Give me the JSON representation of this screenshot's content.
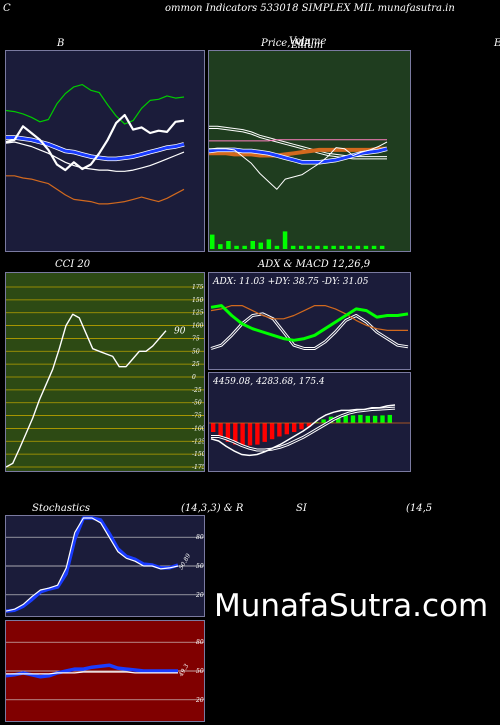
{
  "header": {
    "title": "ommon  Indicators 533018  SIMPLEX  MIL  munafasutra.in",
    "left_mark": "C"
  },
  "titles": {
    "bb": "B",
    "price": "Price,  MA",
    "price_overlay_a": "Volume",
    "price_overlay_b": "Lillum",
    "right_edge": "E",
    "cci": "CCI 20",
    "adx": "ADX  & MACD 12,26,9",
    "stoch": "Stochastics",
    "stoch_params": "(14,3,3) & R",
    "rsi": "SI",
    "rsi_params": "(14,5"
  },
  "watermark": "MunafaSutra.com",
  "colors": {
    "navy": "#1b1c3a",
    "green_bg": "#1f3d1f",
    "olive": "#2d4a14",
    "dark_red": "#800000",
    "blue": "#1a3cff",
    "white": "#ffffff",
    "orange": "#d2691e",
    "green": "#00cc00",
    "lime": "#00ff00",
    "red": "#ff0000",
    "pink": "#ff80c0"
  },
  "chart_data": [
    {
      "type": "line",
      "panel": "bollinger",
      "series": [
        {
          "name": "",
          "color": "#00cc00",
          "values": [
            116,
            115,
            113,
            110,
            106,
            108,
            122,
            131,
            137,
            139,
            134,
            132,
            121,
            111,
            104,
            107,
            118,
            125,
            126,
            129,
            127,
            128
          ]
        },
        {
          "name": "",
          "color": "#1a3cff",
          "values": [
            92,
            92,
            91,
            90,
            88,
            86,
            83,
            80,
            79,
            77,
            75,
            74,
            73,
            73,
            74,
            75,
            77,
            79,
            81,
            83,
            84,
            86
          ]
        },
        {
          "name": "",
          "color": "#ffffff",
          "values": [
            87,
            88,
            86,
            84,
            81,
            78,
            74,
            70,
            67,
            65,
            64,
            63,
            63,
            62,
            62,
            63,
            65,
            67,
            70,
            73,
            76,
            79
          ]
        },
        {
          "name": "",
          "color": "#d2691e",
          "values": [
            58,
            58,
            56,
            55,
            53,
            51,
            46,
            41,
            37,
            36,
            35,
            33,
            33,
            34,
            35,
            37,
            39,
            37,
            35,
            38,
            42,
            46
          ]
        },
        {
          "name": "",
          "color": "#ffffff",
          "values": [
            88,
            90,
            102,
            96,
            90,
            81,
            68,
            63,
            70,
            64,
            68,
            78,
            90,
            105,
            112,
            99,
            101,
            96,
            98,
            97,
            106,
            107
          ]
        }
      ]
    },
    {
      "type": "line",
      "panel": "price_ma",
      "series": [
        {
          "name": "",
          "color": "#ffffff",
          "values": [
            102,
            102,
            101,
            100,
            99,
            97,
            94,
            92,
            90,
            88,
            86,
            84,
            82,
            80,
            78,
            77,
            76,
            75,
            75,
            75,
            75,
            75
          ]
        },
        {
          "name": "",
          "color": "#ff80c0",
          "values": [
            89,
            89,
            89,
            89,
            89,
            89,
            89,
            89,
            90,
            90,
            90,
            90,
            90,
            90,
            90,
            90,
            90,
            90,
            90,
            90,
            90,
            90
          ]
        },
        {
          "name": "",
          "color": "#d2691e",
          "values": [
            78,
            78,
            78,
            77,
            77,
            77,
            76,
            76,
            76,
            77,
            78,
            79,
            80,
            81,
            81,
            81,
            81,
            81,
            81,
            81,
            82,
            82
          ]
        },
        {
          "name": "",
          "color": "#1a3cff",
          "values": [
            80,
            81,
            81,
            81,
            80,
            80,
            79,
            78,
            76,
            74,
            72,
            70,
            70,
            70,
            71,
            72,
            74,
            76,
            78,
            79,
            80,
            82
          ]
        },
        {
          "name": "",
          "color": "#ffffff",
          "values": [
            82,
            82,
            82,
            81,
            75,
            69,
            60,
            53,
            46,
            55,
            57,
            59,
            64,
            69,
            75,
            83,
            82,
            76,
            79,
            81,
            84,
            88
          ]
        }
      ],
      "volume": [
        9,
        3,
        5,
        2,
        2,
        5,
        4,
        6,
        2,
        11,
        2,
        2,
        2,
        2,
        2,
        2,
        2,
        2,
        2,
        2,
        2,
        2
      ]
    },
    {
      "type": "line",
      "panel": "cci",
      "ylim": [
        -175,
        175
      ],
      "ticks": [
        175,
        150,
        125,
        100,
        75,
        50,
        25,
        0,
        -25,
        -50,
        -75,
        -100,
        -125,
        -150,
        -175
      ],
      "series": [
        {
          "name": "",
          "color": "#ffffff",
          "values": [
            -175,
            -168,
            -140,
            -110,
            -80,
            -45,
            -15,
            15,
            55,
            100,
            122,
            115,
            85,
            55,
            50,
            45,
            40,
            20,
            20,
            35,
            50,
            50,
            60,
            75,
            90
          ]
        }
      ],
      "last_value_label": "90"
    },
    {
      "type": "line",
      "panel": "adx",
      "text": "ADX: 11.03  +DY: 38.75  -DY: 31.05",
      "series": [
        {
          "name": "",
          "color": "#00ff00",
          "values": [
            35,
            36,
            30,
            25,
            22,
            20,
            18,
            16,
            15,
            16,
            18,
            22,
            26,
            30,
            34,
            33,
            29,
            30,
            30,
            31
          ]
        },
        {
          "name": "",
          "color": "#d2691e",
          "values": [
            33,
            34,
            36,
            36,
            33,
            30,
            28,
            28,
            30,
            33,
            36,
            36,
            34,
            31,
            27,
            24,
            22,
            21,
            21,
            21
          ]
        },
        {
          "name": "",
          "color": "#ffffff",
          "values": [
            10,
            12,
            18,
            25,
            30,
            31,
            28,
            20,
            12,
            10,
            10,
            14,
            20,
            27,
            30,
            26,
            20,
            16,
            12,
            11
          ]
        }
      ]
    },
    {
      "type": "bar",
      "panel": "macd",
      "text": "4459.08,  4283.68,  175.4",
      "histogram": [
        -20,
        -30,
        -42,
        -48,
        -52,
        -50,
        -48,
        -42,
        -36,
        -30,
        -25,
        -20,
        -14,
        -8,
        2,
        8,
        14,
        16,
        17,
        17,
        18,
        16,
        16,
        17,
        18
      ],
      "series": [
        {
          "name": "",
          "color": "#ffffff",
          "values": [
            -35,
            -40,
            -52,
            -62,
            -70,
            -72,
            -70,
            -64,
            -56,
            -48,
            -38,
            -28,
            -18,
            -6,
            8,
            18,
            24,
            28,
            28,
            30,
            30,
            34,
            34,
            38,
            40
          ]
        },
        {
          "name": "",
          "color": "#ffffff",
          "values": [
            -30,
            -30,
            -35,
            -42,
            -50,
            -56,
            -60,
            -60,
            -58,
            -54,
            -48,
            -40,
            -32,
            -22,
            -12,
            -2,
            8,
            16,
            22,
            26,
            28,
            30,
            31,
            32,
            33
          ]
        }
      ]
    },
    {
      "type": "line",
      "panel": "stochastics",
      "ylim": [
        0,
        100
      ],
      "ticks": [
        80,
        50,
        20
      ],
      "series": [
        {
          "name": "",
          "color": "#1a3cff",
          "values": [
            3,
            4,
            8,
            15,
            23,
            26,
            28,
            42,
            78,
            100,
            100,
            98,
            84,
            68,
            60,
            57,
            52,
            51,
            48,
            48,
            51
          ]
        },
        {
          "name": "",
          "color": "#ffffff",
          "values": [
            3,
            5,
            10,
            18,
            25,
            27,
            30,
            48,
            85,
            100,
            100,
            95,
            80,
            65,
            58,
            55,
            50,
            50,
            47,
            48,
            50
          ]
        }
      ],
      "last_value_label": "50.89"
    },
    {
      "type": "line",
      "panel": "rsi",
      "ylim": [
        0,
        100
      ],
      "ticks": [
        80,
        50,
        20
      ],
      "series": [
        {
          "name": "",
          "color": "#1a3cff",
          "values": [
            45,
            46,
            48,
            46,
            44,
            45,
            48,
            50,
            52,
            52,
            54,
            55,
            56,
            53,
            52,
            51,
            50,
            50,
            50,
            50,
            50
          ]
        },
        {
          "name": "",
          "color": "#ffffff",
          "values": [
            47,
            47,
            47,
            47,
            47,
            47,
            48,
            48,
            48,
            49,
            49,
            49,
            49,
            49,
            49,
            48,
            48,
            48,
            48,
            48,
            48
          ]
        }
      ],
      "last_value_label": "49.3"
    }
  ]
}
